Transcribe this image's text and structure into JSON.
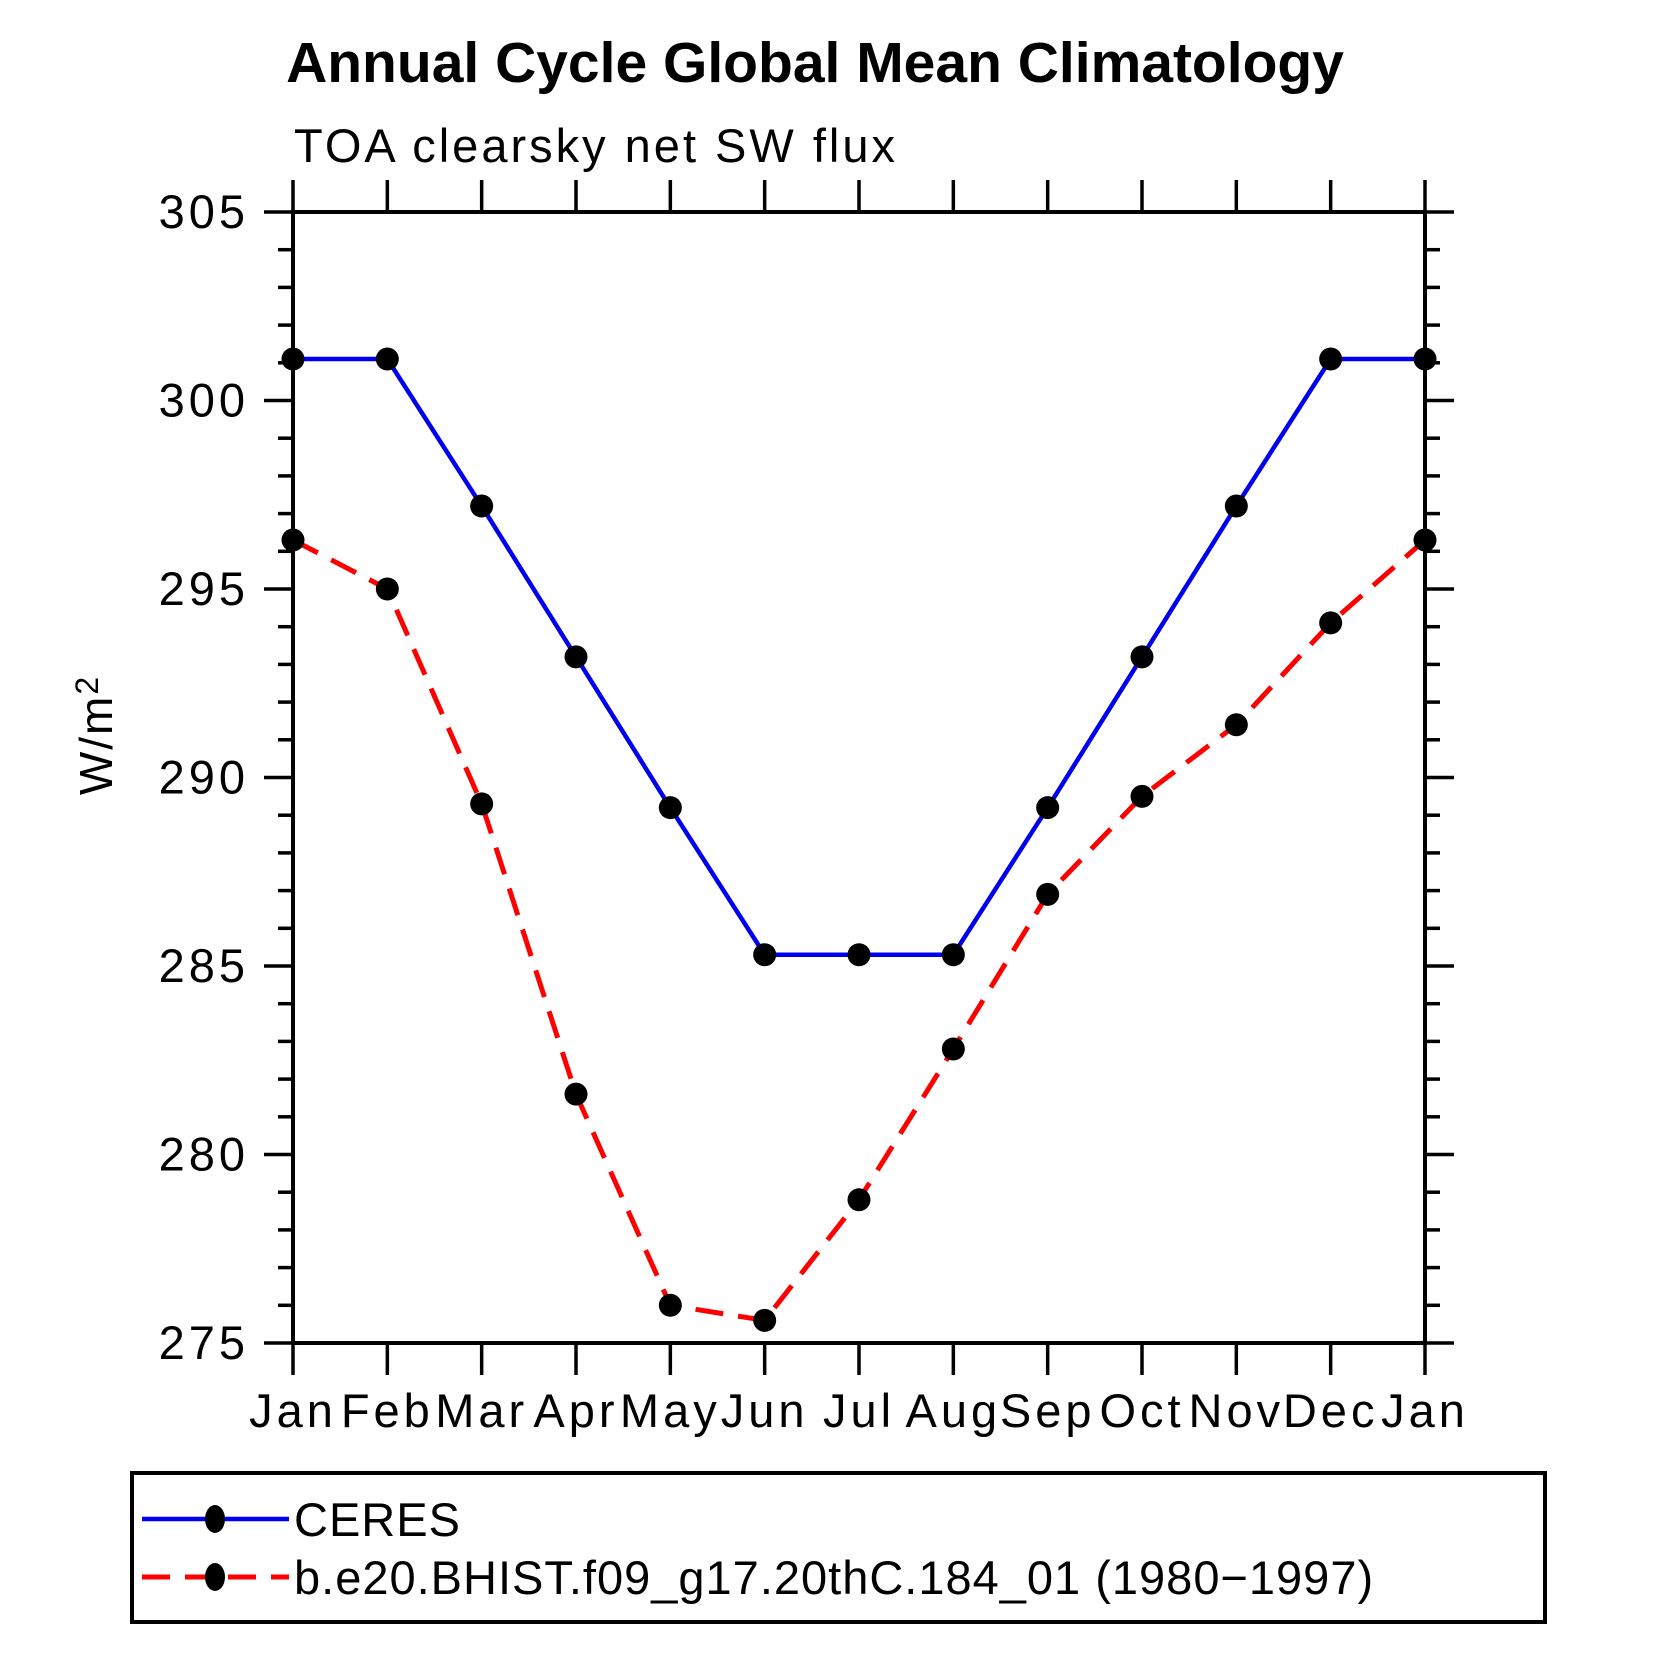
{
  "title": "Annual Cycle Global Mean Climatology",
  "subtitle": "TOA clearsky net SW flux",
  "ylabel": {
    "base": "W/m",
    "sup": "2"
  },
  "chart_data": {
    "type": "line",
    "categories": [
      "Jan",
      "Feb",
      "Mar",
      "Apr",
      "May",
      "Jun",
      "Jul",
      "Aug",
      "Sep",
      "Oct",
      "Nov",
      "Dec",
      "Jan"
    ],
    "series": [
      {
        "name": "CERES",
        "color": "#0000ee",
        "line_style": "solid",
        "marker": "filled-circle",
        "marker_color": "#000000",
        "values": [
          301.1,
          301.1,
          297.2,
          293.2,
          289.2,
          285.3,
          285.3,
          285.3,
          289.2,
          293.2,
          297.2,
          301.1,
          301.1
        ]
      },
      {
        "name": "b.e20.BHIST.f09_g17.20thC.184_01 (1980−1997)",
        "color": "#ff0000",
        "line_style": "dashed",
        "marker": "filled-circle",
        "marker_color": "#000000",
        "values": [
          296.3,
          295.0,
          289.3,
          281.6,
          276.0,
          275.6,
          278.8,
          282.8,
          286.9,
          289.5,
          291.4,
          294.1,
          296.3
        ]
      }
    ],
    "ylim": [
      275,
      305
    ],
    "ytick_major": [
      275,
      280,
      285,
      290,
      295,
      300,
      305
    ],
    "ytick_minor_step": 1,
    "grid": false,
    "legend_position": "bottom"
  }
}
